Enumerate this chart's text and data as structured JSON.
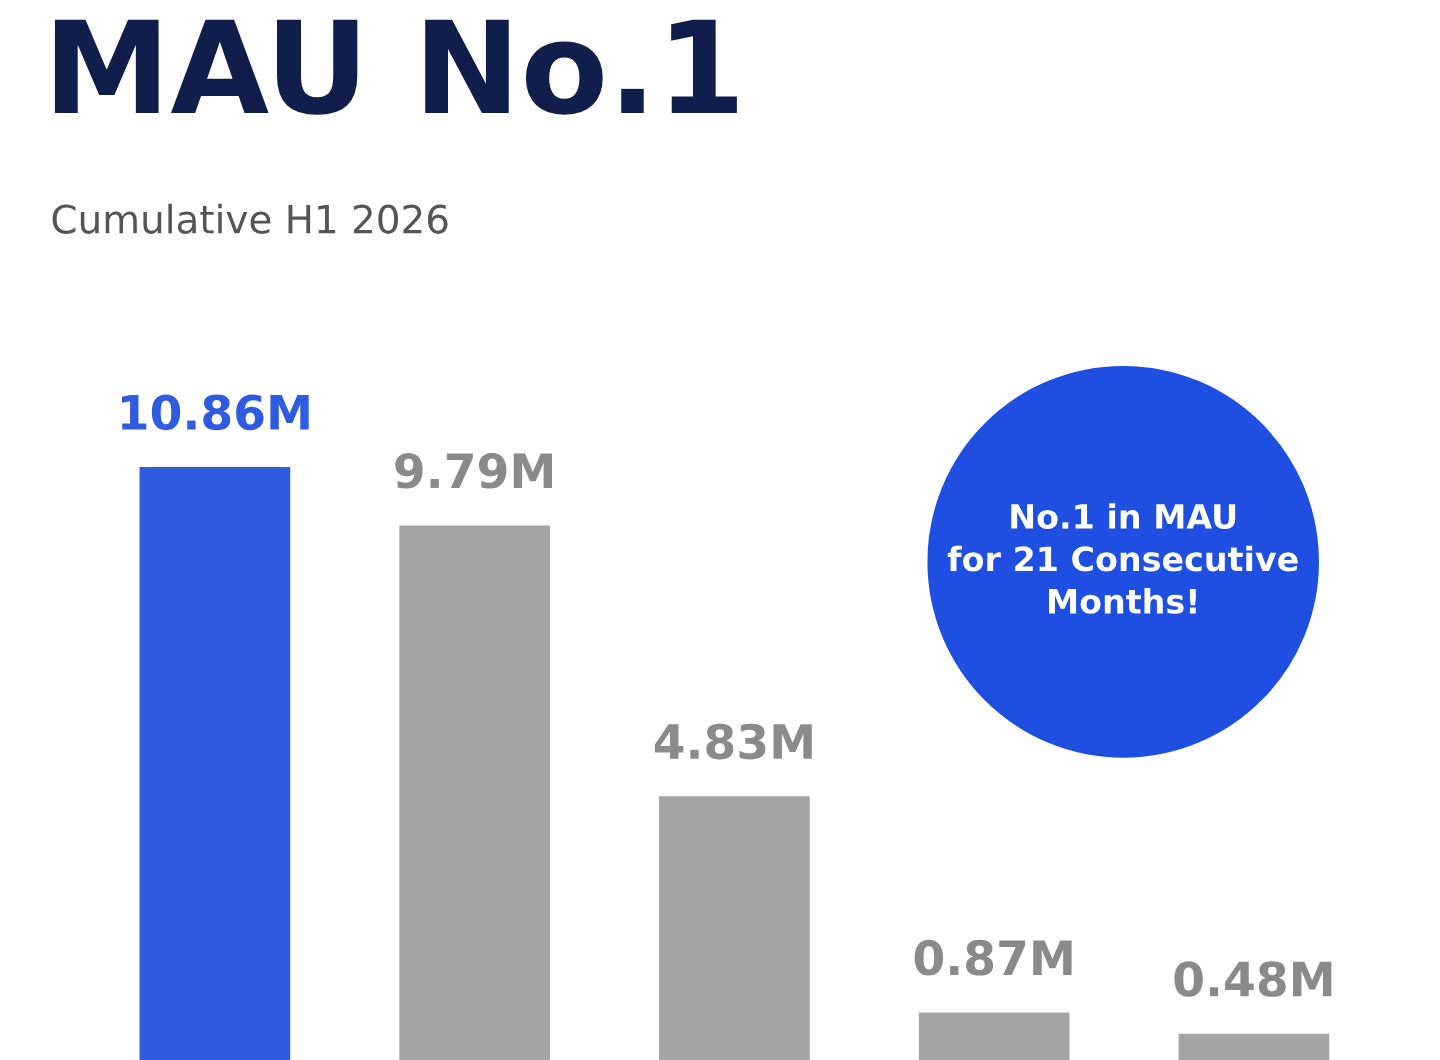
{
  "chart_data": {
    "type": "bar",
    "title": "MAU No.1",
    "subtitle": "Cumulative H1 2026",
    "categories": [
      null,
      null,
      null,
      null,
      null
    ],
    "values": [
      10.86,
      9.79,
      4.83,
      0.87,
      0.48
    ],
    "colors": [
      "#2f5be0",
      "#a4a4a4",
      "#a4a4a4",
      "#a4a4a4",
      "#a4a4a4"
    ],
    "value_labels": [
      "10.86M",
      "9.79M",
      "4.83M",
      "0.87M",
      "0.48M"
    ],
    "annotations": [
      "No.1 in MAU\nfor 21 Consecutive\nMonths!"
    ],
    "grid": false,
    "legend": false
  }
}
